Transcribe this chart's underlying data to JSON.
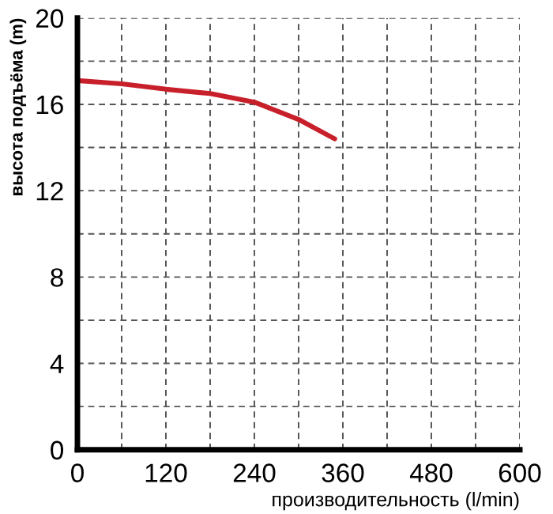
{
  "chart_data": {
    "type": "line",
    "xlabel": "производительность (l/min)",
    "ylabel": "высота подъёма (m)",
    "series": [
      {
        "color": "#c8202a",
        "x": [
          0,
          60,
          120,
          180,
          240,
          300,
          349
        ],
        "values": [
          17.1,
          16.95,
          16.7,
          16.5,
          16.1,
          15.3,
          14.4
        ]
      }
    ],
    "xlim": [
      0,
      600
    ],
    "xticks": [
      0,
      {
        "value": 60,
        "label": null
      },
      120,
      {
        "value": 180,
        "label": null
      },
      240,
      {
        "value": 300,
        "label": null
      },
      360,
      {
        "value": 420,
        "label": null
      },
      480,
      {
        "value": 540,
        "label": null
      },
      600
    ],
    "ylim": [
      0,
      20
    ],
    "yticks": [
      0,
      {
        "value": 2,
        "label": null
      },
      4,
      {
        "value": 6,
        "label": null
      },
      8,
      {
        "value": 10,
        "label": null
      },
      12,
      {
        "value": 14,
        "label": null
      },
      16,
      {
        "value": 18,
        "label": null
      },
      20
    ],
    "grid": true,
    "line_style": "solid",
    "marker": "none"
  }
}
